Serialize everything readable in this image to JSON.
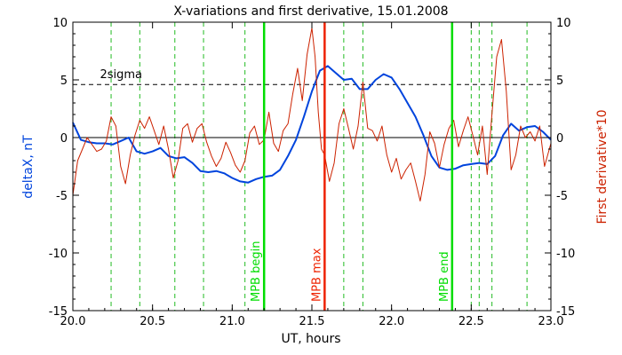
{
  "chart_data": {
    "type": "line",
    "title": "X-variations and first derivative, 15.01.2008",
    "xlabel": "UT, hours",
    "ylabel_left": "deltaX, nT",
    "ylabel_right": "First derivative*10",
    "xlim": [
      20.0,
      23.0
    ],
    "ylim_left": [
      -15,
      10
    ],
    "ylim_right": [
      -15,
      10
    ],
    "xticks": [
      "20.0",
      "20.5",
      "21.0",
      "21.5",
      "22.0",
      "22.5",
      "23.0"
    ],
    "xtick_values": [
      20.0,
      20.5,
      21.0,
      21.5,
      22.0,
      22.5,
      23.0
    ],
    "yticks_left": [
      "-15",
      "-10",
      "-5",
      "0",
      "5",
      "10"
    ],
    "yticks_right": [
      "-15",
      "-10",
      "-5",
      "0",
      "5",
      "10"
    ],
    "ytick_values": [
      -15,
      -10,
      -5,
      0,
      5,
      10
    ],
    "zero_line": 0,
    "sigma_line": {
      "label": "2sigma",
      "value": 4.6
    },
    "series": [
      {
        "color": "#0044dd",
        "axis": "left",
        "x": [
          20.0,
          20.05,
          20.1,
          20.15,
          20.2,
          20.25,
          20.3,
          20.35,
          20.4,
          20.45,
          20.5,
          20.55,
          20.6,
          20.65,
          20.7,
          20.75,
          20.8,
          20.85,
          20.9,
          20.95,
          21.0,
          21.05,
          21.1,
          21.15,
          21.2,
          21.25,
          21.3,
          21.35,
          21.4,
          21.45,
          21.5,
          21.55,
          21.6,
          21.65,
          21.7,
          21.75,
          21.8,
          21.85,
          21.9,
          21.95,
          22.0,
          22.05,
          22.1,
          22.15,
          22.2,
          22.25,
          22.3,
          22.35,
          22.4,
          22.45,
          22.5,
          22.55,
          22.6,
          22.65,
          22.7,
          22.75,
          22.8,
          22.85,
          22.9,
          22.95,
          23.0
        ],
        "y": [
          1.3,
          -0.2,
          -0.4,
          -0.5,
          -0.5,
          -0.6,
          -0.3,
          0.0,
          -1.2,
          -1.4,
          -1.2,
          -0.9,
          -1.6,
          -1.8,
          -1.7,
          -2.2,
          -2.9,
          -3.0,
          -2.9,
          -3.1,
          -3.5,
          -3.8,
          -3.9,
          -3.6,
          -3.4,
          -3.3,
          -2.8,
          -1.6,
          -0.2,
          1.8,
          4.0,
          5.8,
          6.2,
          5.6,
          5.0,
          5.1,
          4.2,
          4.2,
          5.0,
          5.5,
          5.2,
          4.2,
          3.0,
          1.8,
          0.2,
          -1.6,
          -2.6,
          -2.8,
          -2.7,
          -2.4,
          -2.3,
          -2.2,
          -2.3,
          -1.6,
          0.2,
          1.2,
          0.6,
          0.9,
          1.0,
          0.5,
          -0.2
        ]
      },
      {
        "color": "#cc2200",
        "axis": "right",
        "x": [
          20.0,
          20.03,
          20.06,
          20.09,
          20.12,
          20.15,
          20.18,
          20.21,
          20.24,
          20.27,
          20.3,
          20.33,
          20.36,
          20.39,
          20.42,
          20.45,
          20.48,
          20.51,
          20.54,
          20.57,
          20.6,
          20.63,
          20.66,
          20.69,
          20.72,
          20.75,
          20.78,
          20.81,
          20.84,
          20.87,
          20.9,
          20.93,
          20.96,
          20.99,
          21.02,
          21.05,
          21.08,
          21.11,
          21.14,
          21.17,
          21.2,
          21.23,
          21.26,
          21.29,
          21.32,
          21.35,
          21.38,
          21.41,
          21.44,
          21.47,
          21.5,
          21.52,
          21.54,
          21.56,
          21.58,
          21.61,
          21.64,
          21.67,
          21.7,
          21.73,
          21.76,
          21.79,
          21.82,
          21.85,
          21.88,
          21.91,
          21.94,
          21.97,
          22.0,
          22.03,
          22.06,
          22.09,
          22.12,
          22.15,
          22.18,
          22.21,
          22.24,
          22.27,
          22.3,
          22.33,
          22.36,
          22.39,
          22.42,
          22.45,
          22.48,
          22.51,
          22.54,
          22.57,
          22.6,
          22.63,
          22.66,
          22.69,
          22.72,
          22.75,
          22.78,
          22.81,
          22.84,
          22.87,
          22.9,
          22.93,
          22.96,
          23.0
        ],
        "y": [
          -5.0,
          -2.0,
          -1.0,
          0.0,
          -0.6,
          -1.2,
          -1.0,
          -0.3,
          1.8,
          1.0,
          -2.5,
          -4.0,
          -1.5,
          0.2,
          1.5,
          0.8,
          1.8,
          0.6,
          -0.6,
          1.0,
          -1.0,
          -3.5,
          -2.0,
          0.8,
          1.2,
          -0.4,
          0.8,
          1.2,
          -0.4,
          -1.6,
          -2.5,
          -1.8,
          -0.4,
          -1.3,
          -2.4,
          -3.0,
          -2.0,
          0.4,
          1.0,
          -0.6,
          -0.2,
          2.2,
          -0.5,
          -1.2,
          0.6,
          1.2,
          3.8,
          6.0,
          3.2,
          7.2,
          9.5,
          7.0,
          2.2,
          -1.0,
          -1.5,
          -3.8,
          -2.2,
          1.2,
          2.5,
          0.8,
          -1.0,
          1.0,
          4.8,
          0.8,
          0.6,
          -0.3,
          1.0,
          -1.5,
          -3.0,
          -1.8,
          -3.6,
          -2.8,
          -2.2,
          -3.8,
          -5.5,
          -3.2,
          0.5,
          -0.5,
          -2.6,
          -0.6,
          0.8,
          1.5,
          -0.8,
          0.6,
          1.8,
          0.2,
          -1.5,
          1.0,
          -3.2,
          2.0,
          7.0,
          8.5,
          4.0,
          -2.8,
          -1.5,
          1.0,
          0.0,
          0.5,
          -0.3,
          1.0,
          -2.5,
          -0.5
        ]
      }
    ],
    "vertical_lines": {
      "dashed_green_x": [
        20.24,
        20.42,
        20.64,
        20.82,
        21.08,
        21.7,
        21.82,
        22.5,
        22.55,
        22.63,
        22.85
      ],
      "markers": [
        {
          "x": 21.2,
          "label": "MPB begin",
          "color": "#00dd00"
        },
        {
          "x": 21.58,
          "label": "MPB max",
          "color": "#ee2200"
        },
        {
          "x": 22.38,
          "label": "MPB end",
          "color": "#00dd00"
        }
      ]
    }
  }
}
